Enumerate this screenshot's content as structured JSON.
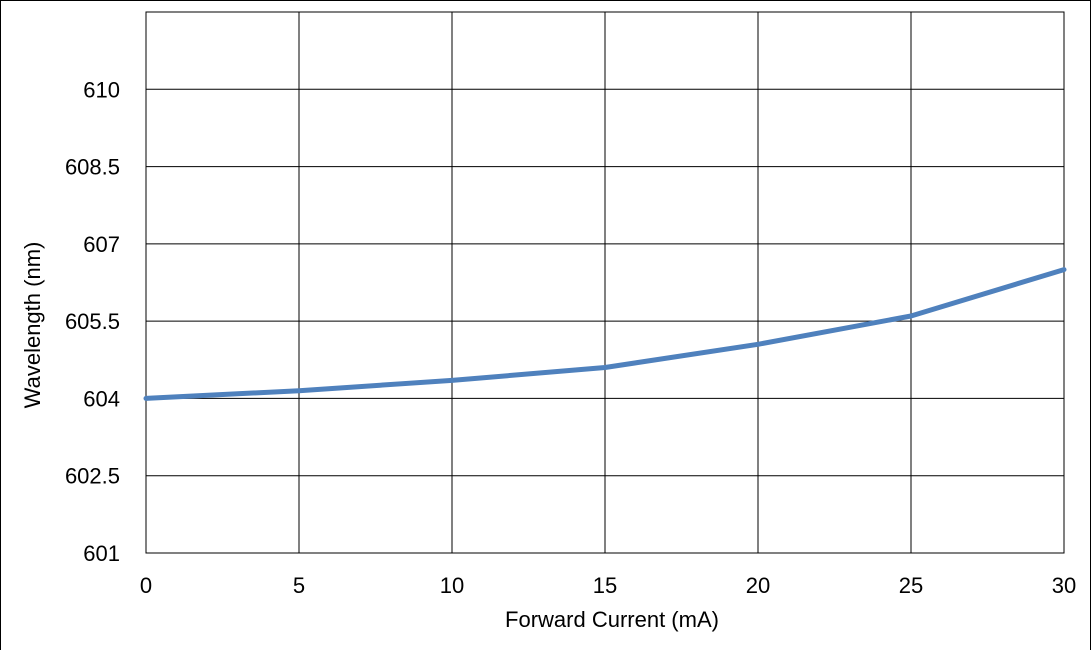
{
  "chart_data": {
    "type": "line",
    "title": "",
    "xlabel": "Forward Current (mA)",
    "ylabel": "Wavelength (nm)",
    "xlim": [
      0,
      30
    ],
    "ylim": [
      601,
      611.5
    ],
    "x_ticks": [
      "0",
      "5",
      "10",
      "15",
      "20",
      "25",
      "30"
    ],
    "y_ticks": [
      "601",
      "602.5",
      "604",
      "605.5",
      "607",
      "608.5",
      "610"
    ],
    "grid": true,
    "legend": "none",
    "series": [
      {
        "x": [
          0,
          5,
          10,
          15,
          20,
          25,
          30
        ],
        "y": [
          604.0,
          604.15,
          604.35,
          604.6,
          605.05,
          605.6,
          606.5
        ],
        "color": "#4f81bd"
      }
    ],
    "colors": {
      "line": "#4f81bd",
      "grid": "#000000",
      "frame": "#000000"
    }
  }
}
